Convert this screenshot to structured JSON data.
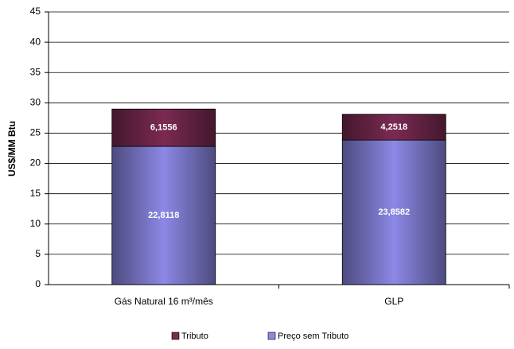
{
  "chart_data": {
    "type": "stacked-bar",
    "y_label": "US$/MM Btu",
    "categories": [
      "Gás Natural 16 m³/mês",
      "GLP"
    ],
    "series": [
      {
        "name": "Tributo",
        "color": "#7b2a52",
        "values": [
          6.1556,
          4.2518
        ],
        "value_labels": [
          "6,1556",
          "4,2518"
        ]
      },
      {
        "name": "Preço sem Tributo",
        "color": "#8c88e6",
        "values": [
          22.8118,
          23.8582
        ],
        "value_labels": [
          "22,8118",
          "23,8582"
        ]
      }
    ],
    "ylim": [
      0,
      45
    ],
    "yticks": [
      0,
      5,
      10,
      15,
      20,
      25,
      30,
      35,
      40,
      45
    ],
    "grid": true,
    "legend": "bottom"
  }
}
